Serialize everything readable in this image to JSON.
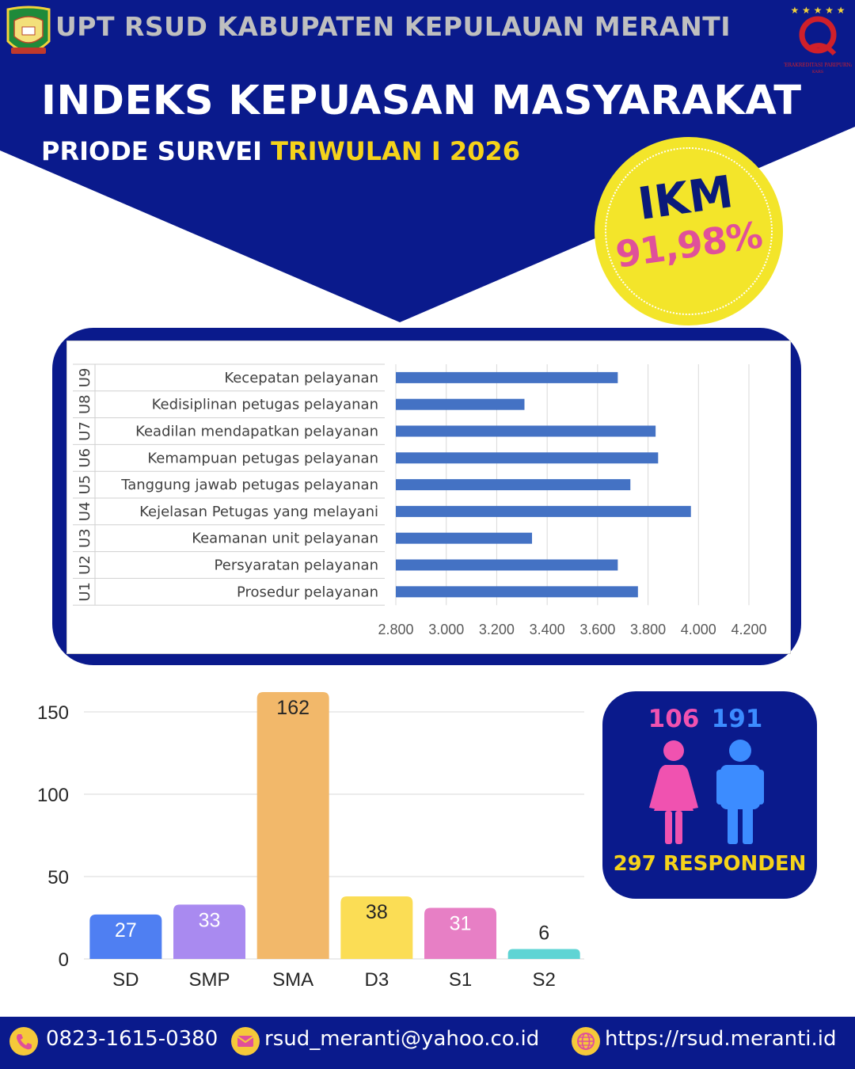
{
  "header": {
    "org_name": "UPT RSUD KABUPATEN KEPULAUAN MERANTI",
    "title": "INDEKS KEPUASAN MASYARAKAT",
    "subtitle_prefix": "PRIODE SURVEI ",
    "subtitle_period": "TRIWULAN I 2026"
  },
  "ikm": {
    "label": "IKM",
    "value": "91,98%"
  },
  "respondents": {
    "female": "106",
    "male": "191",
    "total_label": "297 RESPONDEN"
  },
  "footer": {
    "phone": "0823-1615-0380",
    "email": "rsud_meranti@yahoo.co.id",
    "website": "https://rsud.meranti.id"
  },
  "colors": {
    "navy": "#0a1a8c",
    "yellow": "#f3e52a",
    "pink": "#e0509a",
    "hbar": "#4472c4"
  },
  "chart_data": [
    {
      "type": "bar",
      "orientation": "horizontal",
      "codes": [
        "U1",
        "U2",
        "U3",
        "U4",
        "U5",
        "U6",
        "U7",
        "U8",
        "U9"
      ],
      "categories": [
        "Prosedur pelayanan",
        "Persyaratan pelayanan",
        "Keamanan unit pelayanan",
        "Kejelasan Petugas yang melayani",
        "Tanggung jawab petugas pelayanan",
        "Kemampuan petugas pelayanan",
        "Keadilan mendapatkan pelayanan",
        "Kedisiplinan petugas pelayanan",
        "Kecepatan pelayanan"
      ],
      "values": [
        3.76,
        3.68,
        3.34,
        3.97,
        3.73,
        3.84,
        3.83,
        3.31,
        3.68
      ],
      "xlim": [
        2.8,
        4.2
      ],
      "xticks": [
        "2.800",
        "3.000",
        "3.200",
        "3.400",
        "3.600",
        "3.800",
        "4.000",
        "4.200"
      ],
      "grid": true
    },
    {
      "type": "bar",
      "categories": [
        "SD",
        "SMP",
        "SMA",
        "D3",
        "S1",
        "S2"
      ],
      "values": [
        27,
        33,
        162,
        38,
        31,
        6
      ],
      "ylim": [
        0,
        162
      ],
      "yticks": [
        "0",
        "50",
        "100",
        "150"
      ],
      "colors": [
        "#4f7ff2",
        "#a98af0",
        "#f2b86a",
        "#fbdd55",
        "#e77fc5",
        "#5fd4d4"
      ],
      "grid": true
    }
  ]
}
